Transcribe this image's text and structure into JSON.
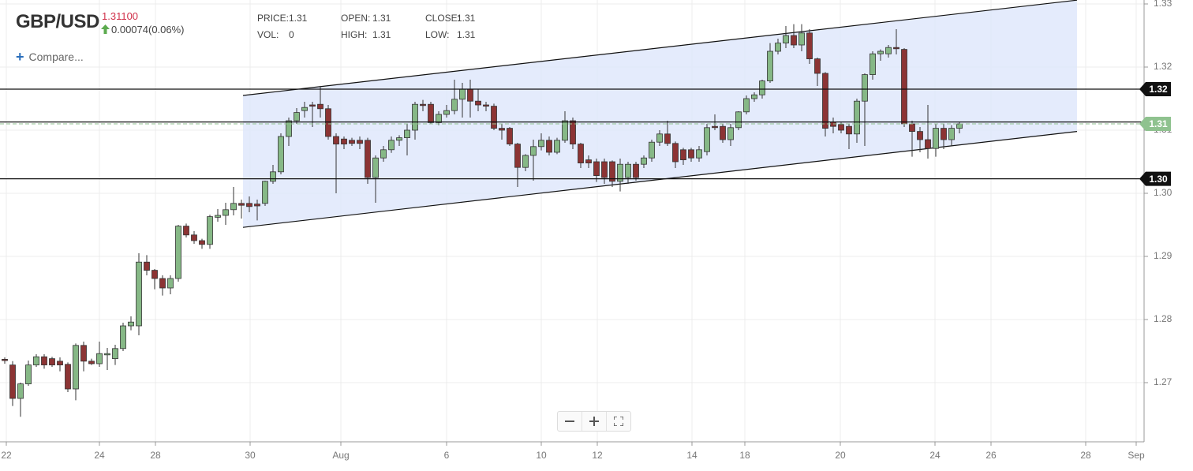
{
  "header": {
    "symbol": "GBP/USD",
    "price": "1.31100",
    "change": "0.00074(0.06%)",
    "compare": "Compare...",
    "stats": [
      {
        "label": "PRICE:",
        "value": "1.31"
      },
      {
        "label": "VOL:",
        "value": "0"
      },
      {
        "label": "OPEN:",
        "value": "1.31"
      },
      {
        "label": "HIGH:",
        "value": "1.31"
      },
      {
        "label": "CLOSE:",
        "value": "1.31"
      },
      {
        "label": "LOW:",
        "value": "1.31"
      }
    ]
  },
  "chart_data": {
    "type": "candlestick",
    "x": [
      0,
      1,
      2,
      3,
      4,
      5,
      6,
      7,
      8,
      9,
      10,
      11,
      12,
      13,
      14,
      15,
      16,
      17,
      18,
      19,
      20,
      21,
      22,
      23,
      24,
      25,
      26,
      27,
      28,
      29,
      30,
      31,
      32,
      33,
      34,
      35,
      36,
      37,
      38,
      39,
      40,
      41,
      42,
      43,
      44,
      45,
      46,
      47,
      48,
      49,
      50,
      51,
      52,
      53,
      54,
      55,
      56,
      57,
      58,
      59,
      60,
      61,
      62,
      63,
      64,
      65,
      66,
      67,
      68,
      69,
      70,
      71,
      72,
      73,
      74,
      75,
      76,
      77,
      78,
      79,
      80,
      81,
      82,
      83,
      84,
      85,
      86,
      87,
      88,
      89,
      90,
      91,
      92,
      93,
      94,
      95,
      96,
      97,
      98,
      99,
      100,
      101,
      102,
      103,
      104,
      105,
      106,
      107,
      108,
      109,
      110,
      111,
      112,
      113,
      114,
      115,
      116,
      117,
      118,
      119,
      120,
      121
    ],
    "open": [
      1.2737,
      1.2728,
      1.2675,
      1.2698,
      1.2728,
      1.2741,
      1.2738,
      1.2734,
      1.2729,
      1.269,
      1.2759,
      1.2734,
      1.273,
      1.2744,
      1.2738,
      1.2754,
      1.279,
      1.279,
      1.2891,
      1.2878,
      1.2865,
      1.285,
      1.2865,
      1.2948,
      1.2934,
      1.2925,
      1.2919,
      1.2962,
      1.2965,
      1.2974,
      1.2984,
      1.2984,
      1.2983,
      1.2984,
      1.3019,
      1.3034,
      1.309,
      1.3115,
      1.3131,
      1.314,
      1.3141,
      1.3134,
      1.309,
      1.3086,
      1.3084,
      1.3084,
      1.3084,
      1.3025,
      1.3056,
      1.3069,
      1.3084,
      1.3088,
      1.31,
      1.3141,
      1.3141,
      1.3112,
      1.3125,
      1.3131,
      1.3149,
      1.3165,
      1.3146,
      1.314,
      1.3138,
      1.3103,
      1.3103,
      1.3078,
      1.3041,
      1.306,
      1.3074,
      1.3084,
      1.3065,
      1.3084,
      1.3115,
      1.3078,
      1.3053,
      1.305,
      1.305,
      1.305,
      1.3019,
      1.3025,
      1.3046,
      1.3046,
      1.3056,
      1.3081,
      1.3094,
      1.3079,
      1.3069,
      1.3069,
      1.3056,
      1.3066,
      1.3106,
      1.3106,
      1.3085,
      1.3104,
      1.3129,
      1.315,
      1.3156,
      1.3178,
      1.3225,
      1.3238,
      1.325,
      1.3235,
      1.3254,
      1.3213,
      1.319,
      1.3113,
      1.3109,
      1.3106,
      1.3094,
      1.3146,
      1.3188,
      1.3221,
      1.3221,
      1.3231,
      1.3228,
      1.311,
      1.3098,
      1.3085,
      1.3071,
      1.3103,
      1.3085,
      1.3103
    ],
    "high": [
      1.274,
      1.2734,
      1.27,
      1.2735,
      1.2745,
      1.2745,
      1.2741,
      1.274,
      1.2732,
      1.2762,
      1.2765,
      1.2738,
      1.2765,
      1.2755,
      1.276,
      1.2795,
      1.2805,
      1.2905,
      1.2902,
      1.288,
      1.287,
      1.287,
      1.295,
      1.2952,
      1.294,
      1.2928,
      1.2966,
      1.2975,
      1.2985,
      1.301,
      1.299,
      1.2995,
      1.299,
      1.302,
      1.3045,
      1.3095,
      1.312,
      1.3135,
      1.3145,
      1.3145,
      1.317,
      1.314,
      1.3095,
      1.309,
      1.3088,
      1.309,
      1.3088,
      1.306,
      1.3075,
      1.309,
      1.3092,
      1.311,
      1.3145,
      1.3148,
      1.3145,
      1.313,
      1.314,
      1.318,
      1.3175,
      1.318,
      1.3165,
      1.3145,
      1.3142,
      1.311,
      1.3105,
      1.308,
      1.3062,
      1.3085,
      1.3095,
      1.309,
      1.3088,
      1.313,
      1.312,
      1.308,
      1.306,
      1.3055,
      1.3055,
      1.3052,
      1.3055,
      1.305,
      1.305,
      1.306,
      1.3085,
      1.31,
      1.3115,
      1.3082,
      1.3072,
      1.3072,
      1.3075,
      1.311,
      1.3125,
      1.311,
      1.311,
      1.313,
      1.3155,
      1.316,
      1.318,
      1.3238,
      1.3245,
      1.3265,
      1.3268,
      1.3268,
      1.326,
      1.3215,
      1.3192,
      1.312,
      1.3112,
      1.311,
      1.315,
      1.319,
      1.3225,
      1.3228,
      1.3235,
      1.326,
      1.323,
      1.3115,
      1.3105,
      1.314,
      1.311,
      1.311,
      1.3108,
      1.3113
    ],
    "low": [
      1.273,
      1.2663,
      1.2646,
      1.2695,
      1.2725,
      1.2722,
      1.2725,
      1.2718,
      1.2685,
      1.2672,
      1.2718,
      1.2728,
      1.2725,
      1.272,
      1.2728,
      1.275,
      1.2783,
      1.2775,
      1.287,
      1.2848,
      1.2838,
      1.284,
      1.286,
      1.293,
      1.292,
      1.2912,
      1.2912,
      1.2955,
      1.295,
      1.2965,
      1.296,
      1.297,
      1.2957,
      1.298,
      1.3015,
      1.303,
      1.3075,
      1.311,
      1.312,
      1.3105,
      1.312,
      1.3085,
      1.3,
      1.307,
      1.3075,
      1.307,
      1.3015,
      1.2985,
      1.305,
      1.3064,
      1.3075,
      1.306,
      1.3085,
      1.313,
      1.311,
      1.3108,
      1.312,
      1.3125,
      1.312,
      1.312,
      1.313,
      1.313,
      1.31,
      1.3085,
      1.3075,
      1.301,
      1.3035,
      1.302,
      1.3068,
      1.306,
      1.3062,
      1.308,
      1.307,
      1.304,
      1.304,
      1.3018,
      1.3015,
      1.301,
      1.3003,
      1.3015,
      1.302,
      1.304,
      1.305,
      1.3075,
      1.3075,
      1.304,
      1.3045,
      1.305,
      1.305,
      1.306,
      1.31,
      1.308,
      1.3075,
      1.31,
      1.3125,
      1.3145,
      1.315,
      1.3175,
      1.322,
      1.323,
      1.323,
      1.3225,
      1.3205,
      1.317,
      1.309,
      1.3095,
      1.3095,
      1.307,
      1.308,
      1.3075,
      1.318,
      1.321,
      1.3215,
      1.322,
      1.3105,
      1.3058,
      1.3065,
      1.3055,
      1.3058,
      1.307,
      1.3075,
      1.3095
    ],
    "close": [
      1.2735,
      1.2675,
      1.2698,
      1.2728,
      1.2741,
      1.2728,
      1.2728,
      1.2728,
      1.269,
      1.2759,
      1.2734,
      1.273,
      1.2746,
      1.2746,
      1.2754,
      1.279,
      1.2796,
      1.2891,
      1.2878,
      1.2865,
      1.285,
      1.2865,
      1.2948,
      1.2934,
      1.2925,
      1.2919,
      1.2963,
      1.2965,
      1.2974,
      1.2984,
      1.2981,
      1.2979,
      1.298,
      1.3019,
      1.3034,
      1.309,
      1.3115,
      1.3128,
      1.3136,
      1.3138,
      1.3134,
      1.309,
      1.3078,
      1.3078,
      1.3079,
      1.3079,
      1.3025,
      1.3056,
      1.3069,
      1.3084,
      1.3088,
      1.31,
      1.3141,
      1.3139,
      1.3112,
      1.3125,
      1.3131,
      1.3149,
      1.3165,
      1.3146,
      1.314,
      1.3138,
      1.3103,
      1.31,
      1.3078,
      1.3041,
      1.306,
      1.3074,
      1.3084,
      1.3065,
      1.3084,
      1.3115,
      1.3078,
      1.3048,
      1.3048,
      1.3028,
      1.3025,
      1.3019,
      1.3046,
      1.3046,
      1.3025,
      1.3056,
      1.3081,
      1.3094,
      1.3079,
      1.305,
      1.3053,
      1.3056,
      1.3069,
      1.3104,
      1.3104,
      1.3085,
      1.3104,
      1.3129,
      1.315,
      1.3156,
      1.3178,
      1.3225,
      1.3238,
      1.325,
      1.3235,
      1.3254,
      1.3213,
      1.319,
      1.3103,
      1.3106,
      1.31,
      1.3094,
      1.3146,
      1.3188,
      1.3221,
      1.3225,
      1.3231,
      1.3229,
      1.311,
      1.3098,
      1.3085,
      1.3071,
      1.3103,
      1.3085,
      1.3103,
      1.311
    ],
    "up_color": "#86b886",
    "down_color": "#8c3434",
    "xlim": [
      -0.6,
      144.4
    ],
    "xticks": [
      {
        "value": 0.2,
        "label": "22"
      },
      {
        "value": 12,
        "label": "24"
      },
      {
        "value": 19.1,
        "label": "28"
      },
      {
        "value": 31.1,
        "label": "30"
      },
      {
        "value": 42.6,
        "label": "Aug"
      },
      {
        "value": 56,
        "label": "6"
      },
      {
        "value": 68,
        "label": "10"
      },
      {
        "value": 75.1,
        "label": "12"
      },
      {
        "value": 87.1,
        "label": "14"
      },
      {
        "value": 93.8,
        "label": "18"
      },
      {
        "value": 105.9,
        "label": "20"
      },
      {
        "value": 117.9,
        "label": "24"
      },
      {
        "value": 125,
        "label": "26"
      },
      {
        "value": 137,
        "label": "28"
      },
      {
        "value": 143.4,
        "label": "Sep"
      }
    ],
    "ylim": [
      1.260625,
      1.330625
    ],
    "yticks": [
      1.27,
      1.28,
      1.29,
      {
        "value": 1.3,
        "label": "1.30"
      },
      1.31,
      1.32,
      1.33
    ],
    "grid": true,
    "channel": {
      "x": [
        30.2,
        135.9
      ],
      "upper": [
        1.3155,
        1.3306
      ],
      "lower": [
        1.2946,
        1.3098
      ],
      "color": "#dfe7fb"
    },
    "levels": [
      {
        "value": 1.3165,
        "label": "1.32"
      },
      {
        "value": 1.3113
      },
      {
        "value": 1.3023,
        "label": "1.30"
      }
    ],
    "level_color": "#111111",
    "last_price": {
      "value": 1.311,
      "label": "1.31",
      "color": "#8fc28f"
    }
  }
}
